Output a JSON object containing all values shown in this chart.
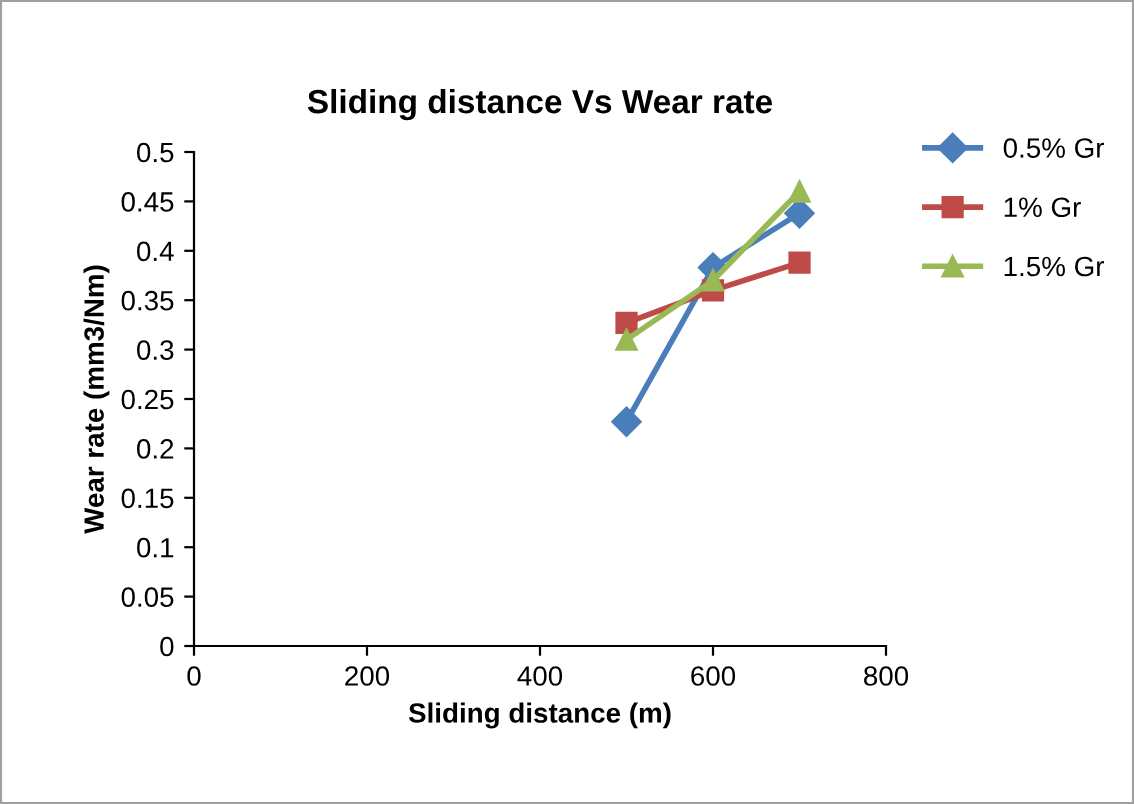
{
  "chart_data": {
    "type": "line",
    "title": "Sliding distance Vs Wear rate",
    "xlabel": "Sliding distance (m)",
    "ylabel": "Wear rate (mm3/Nm)",
    "x": [
      500,
      600,
      700
    ],
    "series": [
      {
        "name": "0.5% Gr",
        "color": "#4a7ebb",
        "marker": "diamond",
        "values": [
          0.227,
          0.383,
          0.438
        ]
      },
      {
        "name": "1% Gr",
        "color": "#be4b48",
        "marker": "square",
        "values": [
          0.327,
          0.36,
          0.388
        ]
      },
      {
        "name": "1.5% Gr",
        "color": "#98b954",
        "marker": "triangle",
        "values": [
          0.31,
          0.37,
          0.46
        ]
      }
    ],
    "xlim": [
      0,
      800
    ],
    "xticks": [
      0,
      200,
      400,
      600,
      800
    ],
    "ylim": [
      0,
      0.5
    ],
    "yticks": [
      {
        "value": 0,
        "label": "0"
      },
      {
        "value": 0.05,
        "label": "0.05"
      },
      {
        "value": 0.1,
        "label": "0.1"
      },
      {
        "value": 0.15,
        "label": "0.15"
      },
      {
        "value": 0.2,
        "label": "0.2"
      },
      {
        "value": 0.25,
        "label": "0.25"
      },
      {
        "value": 0.3,
        "label": "0.3"
      },
      {
        "value": 0.35,
        "label": "0.35"
      },
      {
        "value": 0.4,
        "label": "0.4"
      },
      {
        "value": 0.45,
        "label": "0.45"
      },
      {
        "value": 0.5,
        "label": "0.5"
      }
    ],
    "grid": false,
    "legend": "top right",
    "line_style": "solid"
  }
}
